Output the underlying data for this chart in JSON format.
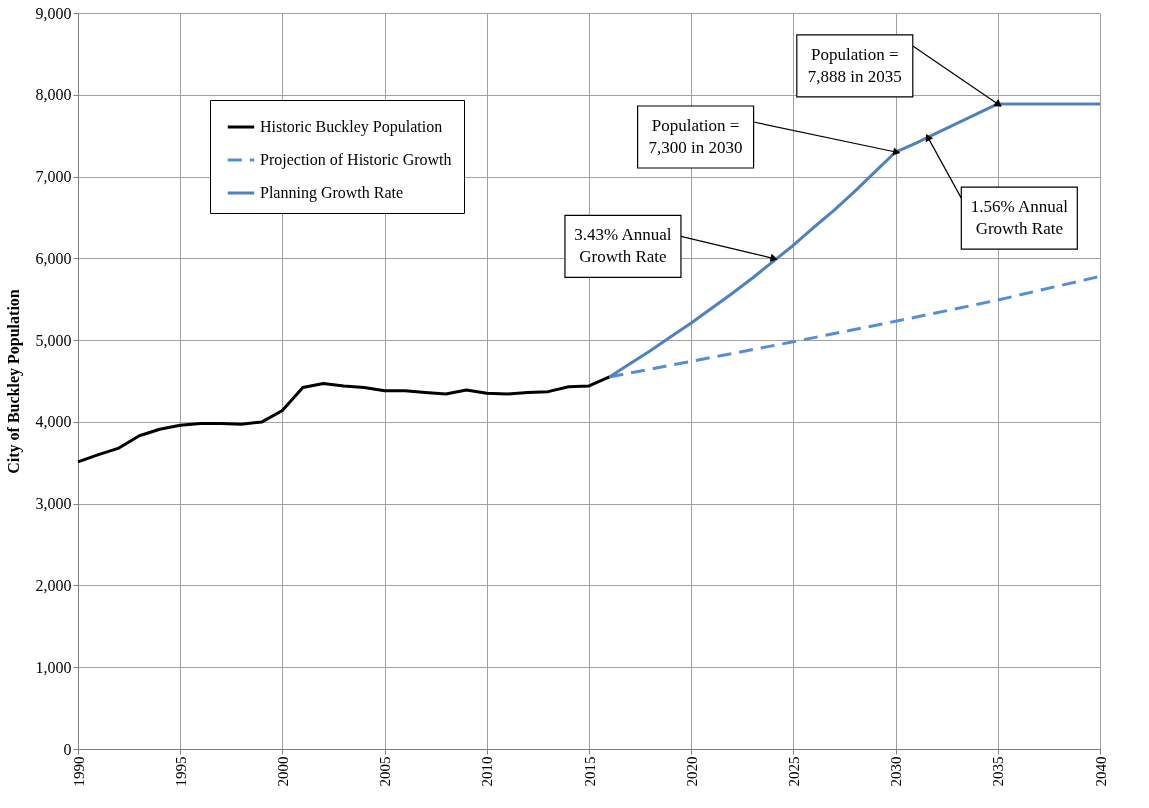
{
  "chart_data": {
    "type": "line",
    "ylabel": "City of Buckley Population",
    "xlim": [
      1990,
      2040
    ],
    "xticks": [
      1990,
      1995,
      2000,
      2005,
      2010,
      2015,
      2020,
      2025,
      2030,
      2035,
      2040
    ],
    "ylim": [
      0,
      9000
    ],
    "yticks": [
      0,
      {
        "value": 1000,
        "label": "1,000"
      },
      {
        "value": 2000,
        "label": "2,000"
      },
      {
        "value": 3000,
        "label": "3,000"
      },
      {
        "value": 4000,
        "label": "4,000"
      },
      {
        "value": 5000,
        "label": "5,000"
      },
      {
        "value": 6000,
        "label": "6,000"
      },
      {
        "value": 7000,
        "label": "7,000"
      },
      {
        "value": 8000,
        "label": "8,000"
      },
      {
        "value": 9000,
        "label": "9,000"
      }
    ],
    "grid": true,
    "legend": "top left",
    "marker": "none",
    "series": [
      {
        "name": "Historic Buckley Population",
        "color": "#000000",
        "line_style": "solid",
        "x": [
          1990,
          1991,
          1992,
          1993,
          1994,
          1995,
          1996,
          1997,
          1998,
          1999,
          2000,
          2001,
          2002,
          2003,
          2004,
          2005,
          2006,
          2007,
          2008,
          2009,
          2010,
          2011,
          2012,
          2013,
          2014,
          2015,
          2016
        ],
        "values": [
          3510,
          3600,
          3680,
          3830,
          3910,
          3960,
          3980,
          3980,
          3970,
          4000,
          4140,
          4420,
          4470,
          4440,
          4420,
          4380,
          4380,
          4360,
          4340,
          4390,
          4350,
          4340,
          4360,
          4370,
          4430,
          4440,
          4550
        ]
      },
      {
        "name": "Projection of Historic Growth",
        "color": "#558ed5",
        "line_style": "dashed",
        "x": [
          2016,
          2020,
          2025,
          2030,
          2035,
          2040
        ],
        "values": [
          4550,
          4740,
          4980,
          5230,
          5490,
          5780
        ]
      },
      {
        "name": "Planning Growth Rate",
        "color": "#4f81bd",
        "line_style": "solid",
        "x": [
          2016,
          2017,
          2018,
          2019,
          2020,
          2021,
          2022,
          2023,
          2024,
          2025,
          2026,
          2027,
          2028,
          2029,
          2030,
          2031,
          2032,
          2033,
          2034,
          2035,
          2040
        ],
        "values": [
          4550,
          4710,
          4870,
          5040,
          5210,
          5390,
          5570,
          5760,
          5960,
          6160,
          6380,
          6590,
          6820,
          7060,
          7300,
          7410,
          7530,
          7650,
          7770,
          7888,
          7888
        ]
      }
    ],
    "annotations": [
      {
        "text": "Population =\n7,888 in 2035",
        "x": 2035,
        "y": 7888
      },
      {
        "text": "Population =\n7,300 in 2030",
        "x": 2030,
        "y": 7300
      },
      {
        "text": "3.43% Annual\nGrowth Rate",
        "x": 2024,
        "y": 6000
      },
      {
        "text": "1.56% Annual\nGrowth Rate",
        "x": 2031.6,
        "y": 7470
      }
    ]
  }
}
